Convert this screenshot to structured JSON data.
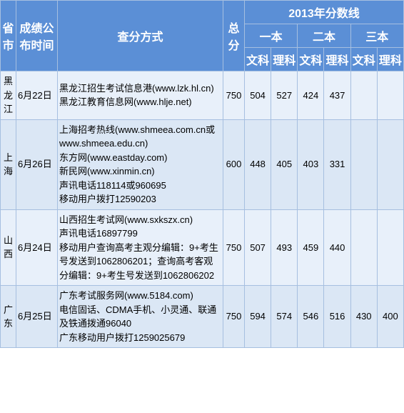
{
  "header": {
    "province": "省市",
    "announce_time": "成绩公布时间",
    "query_method": "查分方式",
    "total_score": "总分",
    "year_line": "2013年分数线",
    "tier1": "一本",
    "tier2": "二本",
    "tier3": "三本",
    "arts": "文科",
    "science": "理科"
  },
  "header_style": {
    "bg_color": "#5b8fd6",
    "text_color": "#ffffff",
    "border_color": "#a6bfe0"
  },
  "row_colors": {
    "odd": "#e8f0fa",
    "even": "#dbe7f5"
  },
  "rows": [
    {
      "province": "黑龙江",
      "date": "6月22日",
      "method": "黑龙江招生考试信息港(www.lzk.hl.cn)\n黑龙江教育信息网(www.hlje.net)",
      "total": "750",
      "t1_arts": "504",
      "t1_sci": "527",
      "t2_arts": "424",
      "t2_sci": "437",
      "t3_arts": "",
      "t3_sci": ""
    },
    {
      "province": "上海",
      "date": "6月26日",
      "method": "上海招考热线(www.shmeea.com.cn或www.shmeea.edu.cn)\n东方网(www.eastday.com)\n新民网(www.xinmin.cn)\n声讯电话118114或960695\n移动用户拨打12590203",
      "total": "600",
      "t1_arts": "448",
      "t1_sci": "405",
      "t2_arts": "403",
      "t2_sci": "331",
      "t3_arts": "",
      "t3_sci": ""
    },
    {
      "province": "山西",
      "date": "6月24日",
      "method": "山西招生考试网(www.sxkszx.cn)\n声讯电话16897799\n移动用户查询高考主观分编辑：9+考生号发送到1062806201；查询高考客观分编辑：9+考生号发送到1062806202",
      "total": "750",
      "t1_arts": "507",
      "t1_sci": "493",
      "t2_arts": "459",
      "t2_sci": "440",
      "t3_arts": "",
      "t3_sci": ""
    },
    {
      "province": "广东",
      "date": "6月25日",
      "method": "广东考试服务网(www.5184.com)\n电信固话、CDMA手机、小灵通、联通及铁通拨通96040\n广东移动用户拨打1259025679",
      "total": "750",
      "t1_arts": "594",
      "t1_sci": "574",
      "t2_arts": "546",
      "t2_sci": "516",
      "t3_arts": "430",
      "t3_sci": "400"
    }
  ]
}
